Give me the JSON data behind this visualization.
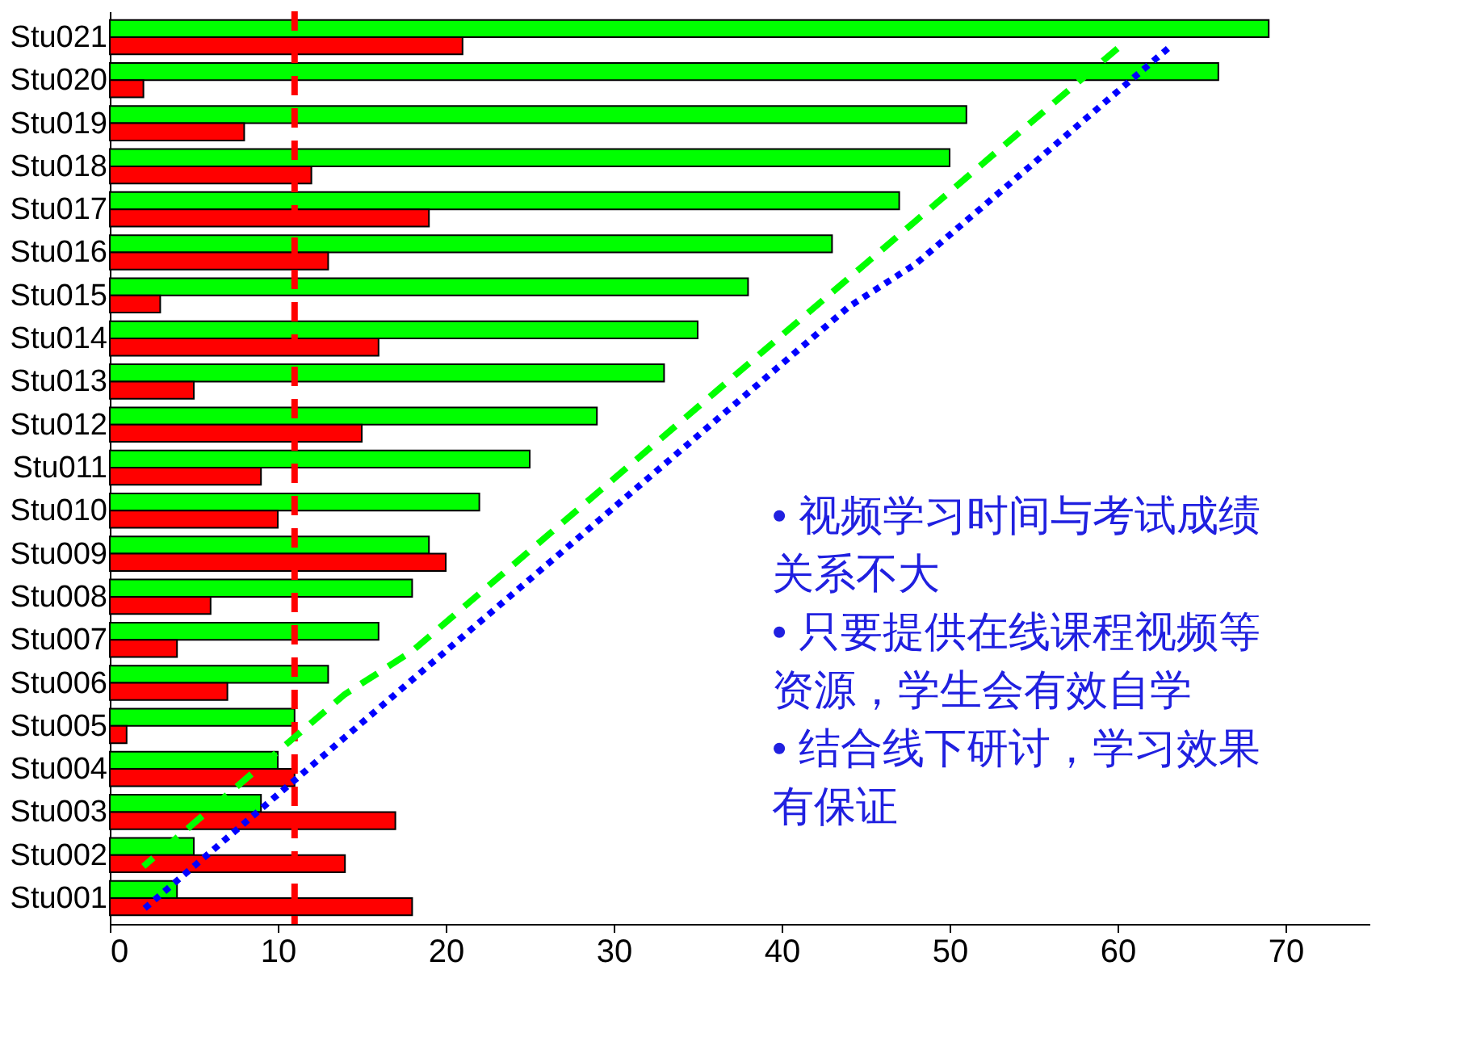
{
  "chart_data": {
    "type": "bar",
    "orientation": "horizontal",
    "categories": [
      "Stu021",
      "Stu020",
      "Stu019",
      "Stu018",
      "Stu017",
      "Stu016",
      "Stu015",
      "Stu014",
      "Stu013",
      "Stu012",
      "Stu011",
      "Stu010",
      "Stu009",
      "Stu008",
      "Stu007",
      "Stu006",
      "Stu005",
      "Stu004",
      "Stu003",
      "Stu002",
      "Stu001"
    ],
    "series": [
      {
        "color": "#00ff00",
        "values": [
          69,
          66,
          51,
          50,
          47,
          43,
          38,
          35,
          33,
          29,
          25,
          22,
          19,
          18,
          16,
          13,
          11,
          10,
          9,
          5,
          4
        ]
      },
      {
        "color": "#ff0000",
        "values": [
          21,
          2,
          8,
          12,
          19,
          13,
          3,
          16,
          5,
          15,
          9,
          10,
          20,
          6,
          4,
          7,
          1,
          11,
          17,
          14,
          18
        ]
      },
      {
        "type": "line",
        "color": "#00ff00",
        "line_style": "dashed",
        "values": [
          60,
          57,
          54,
          51,
          48,
          45,
          42,
          39,
          36,
          33,
          30,
          27,
          24,
          21,
          18,
          14,
          11,
          8,
          5,
          2,
          null
        ]
      },
      {
        "type": "line",
        "color": "#0000ff",
        "line_style": "dotted",
        "values": [
          63,
          60,
          57,
          54,
          51,
          48,
          44,
          41,
          38,
          35,
          32,
          29,
          26,
          23,
          20,
          17,
          14,
          11,
          8,
          5,
          2
        ]
      }
    ],
    "xlim": [
      0,
      75
    ],
    "xticks": [
      0,
      10,
      20,
      30,
      40,
      50,
      60,
      70
    ],
    "grid": false,
    "legend": false,
    "ref_lines": [
      {
        "axis": "x",
        "value": 11,
        "color": "#ff0000",
        "line_style": "dashed"
      }
    ],
    "annotations": [
      "• 视频学习时间与考试成绩关系不大",
      "• 只要提供在线课程视频等资源，学生会有效自学",
      "• 结合线下研讨，学习效果有保证"
    ]
  }
}
